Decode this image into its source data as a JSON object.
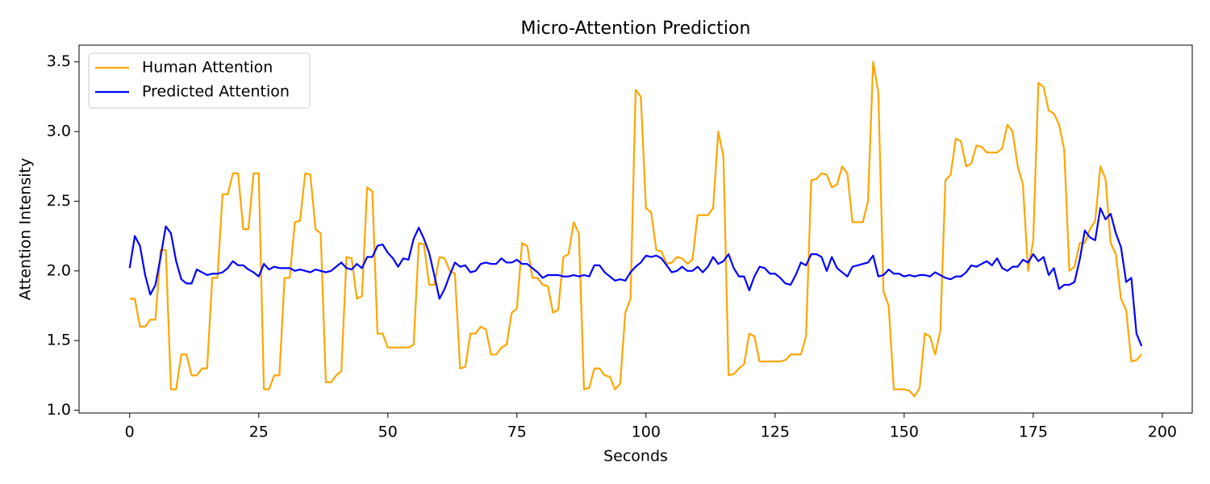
{
  "chart_data": {
    "type": "line",
    "title": "Micro-Attention Prediction",
    "x_label": "Seconds",
    "y_label": "Attention Intensity",
    "x": [
      0,
      1,
      2,
      3,
      4,
      5,
      6,
      7,
      8,
      9,
      10,
      11,
      12,
      13,
      14,
      15,
      16,
      17,
      18,
      19,
      20,
      21,
      22,
      23,
      24,
      25,
      26,
      27,
      28,
      29,
      30,
      31,
      32,
      33,
      34,
      35,
      36,
      37,
      38,
      39,
      40,
      41,
      42,
      43,
      44,
      45,
      46,
      47,
      48,
      49,
      50,
      51,
      52,
      53,
      54,
      55,
      56,
      57,
      58,
      59,
      60,
      61,
      62,
      63,
      64,
      65,
      66,
      67,
      68,
      69,
      70,
      71,
      72,
      73,
      74,
      75,
      76,
      77,
      78,
      79,
      80,
      81,
      82,
      83,
      84,
      85,
      86,
      87,
      88,
      89,
      90,
      91,
      92,
      93,
      94,
      95,
      96,
      97,
      98,
      99,
      100,
      101,
      102,
      103,
      104,
      105,
      106,
      107,
      108,
      109,
      110,
      111,
      112,
      113,
      114,
      115,
      116,
      117,
      118,
      119,
      120,
      121,
      122,
      123,
      124,
      125,
      126,
      127,
      128,
      129,
      130,
      131,
      132,
      133,
      134,
      135,
      136,
      137,
      138,
      139,
      140,
      141,
      142,
      143,
      144,
      145,
      146,
      147,
      148,
      149,
      150,
      151,
      152,
      153,
      154,
      155,
      156,
      157,
      158,
      159,
      160,
      161,
      162,
      163,
      164,
      165,
      166,
      167,
      168,
      169,
      170,
      171,
      172,
      173,
      174,
      175,
      176,
      177,
      178,
      179,
      180,
      181,
      182,
      183,
      184,
      185,
      186,
      187,
      188,
      189,
      190,
      191,
      192,
      193,
      194,
      195,
      196
    ],
    "series": [
      {
        "name": "Human Attention",
        "color": "orange",
        "values": [
          1.8,
          1.8,
          1.6,
          1.6,
          1.65,
          1.65,
          2.15,
          2.15,
          1.15,
          1.15,
          1.4,
          1.4,
          1.25,
          1.25,
          1.3,
          1.3,
          1.95,
          1.95,
          2.55,
          2.55,
          2.7,
          2.7,
          2.3,
          2.3,
          2.7,
          2.7,
          1.15,
          1.15,
          1.25,
          1.25,
          1.95,
          1.95,
          2.35,
          2.36,
          2.7,
          2.69,
          2.3,
          2.27,
          1.2,
          1.2,
          1.25,
          1.28,
          2.1,
          2.09,
          1.8,
          1.82,
          2.6,
          2.57,
          1.55,
          1.55,
          1.45,
          1.45,
          1.45,
          1.45,
          1.45,
          1.47,
          2.2,
          2.19,
          1.9,
          1.9,
          2.1,
          2.09,
          2.0,
          1.98,
          1.3,
          1.31,
          1.55,
          1.55,
          1.6,
          1.58,
          1.4,
          1.4,
          1.45,
          1.47,
          1.7,
          1.73,
          2.2,
          2.18,
          1.95,
          1.95,
          1.9,
          1.89,
          1.7,
          1.72,
          2.1,
          2.12,
          2.35,
          2.27,
          1.15,
          1.16,
          1.3,
          1.3,
          1.25,
          1.24,
          1.15,
          1.19,
          1.7,
          1.8,
          3.3,
          3.25,
          2.45,
          2.42,
          2.15,
          2.14,
          2.05,
          2.06,
          2.1,
          2.09,
          2.05,
          2.08,
          2.4,
          2.4,
          2.4,
          2.45,
          3.0,
          2.82,
          1.25,
          1.26,
          1.3,
          1.33,
          1.55,
          1.53,
          1.35,
          1.35,
          1.35,
          1.35,
          1.35,
          1.36,
          1.4,
          1.4,
          1.4,
          1.53,
          2.65,
          2.66,
          2.7,
          2.69,
          2.6,
          2.62,
          2.75,
          2.7,
          2.35,
          2.35,
          2.35,
          2.5,
          3.5,
          3.28,
          1.85,
          1.75,
          1.15,
          1.15,
          1.15,
          1.14,
          1.1,
          1.16,
          1.55,
          1.53,
          1.4,
          1.57,
          2.65,
          2.69,
          2.95,
          2.93,
          2.75,
          2.77,
          2.9,
          2.89,
          2.85,
          2.85,
          2.85,
          2.88,
          3.05,
          3.0,
          2.75,
          2.62,
          2.0,
          2.22,
          3.35,
          3.32,
          3.15,
          3.13,
          3.05,
          2.87,
          2.0,
          2.03,
          2.2,
          2.2,
          2.3,
          2.36,
          2.75,
          2.66,
          2.2,
          2.12,
          1.8,
          1.72,
          1.35,
          1.36,
          1.4
        ]
      },
      {
        "name": "Predicted Attention",
        "color": "blue",
        "values": [
          2.02,
          2.25,
          2.18,
          1.97,
          1.83,
          1.9,
          2.1,
          2.32,
          2.27,
          2.07,
          1.94,
          1.91,
          1.91,
          2.01,
          1.99,
          1.97,
          1.98,
          1.98,
          1.99,
          2.02,
          2.07,
          2.04,
          2.04,
          2.01,
          1.99,
          1.96,
          2.05,
          2.01,
          2.03,
          2.02,
          2.02,
          2.02,
          2.0,
          2.01,
          2.0,
          1.99,
          2.01,
          2.0,
          1.99,
          2.0,
          2.03,
          2.06,
          2.02,
          2.01,
          2.05,
          2.02,
          2.1,
          2.1,
          2.18,
          2.19,
          2.13,
          2.09,
          2.03,
          2.09,
          2.08,
          2.23,
          2.31,
          2.23,
          2.13,
          1.97,
          1.8,
          1.87,
          1.97,
          2.06,
          2.03,
          2.04,
          1.99,
          2.0,
          2.05,
          2.06,
          2.05,
          2.05,
          2.09,
          2.06,
          2.06,
          2.08,
          2.05,
          2.05,
          2.02,
          1.99,
          1.95,
          1.97,
          1.97,
          1.97,
          1.96,
          1.96,
          1.97,
          1.96,
          1.97,
          1.96,
          2.04,
          2.04,
          1.99,
          1.96,
          1.93,
          1.94,
          1.93,
          1.99,
          2.03,
          2.06,
          2.11,
          2.1,
          2.11,
          2.09,
          2.04,
          1.99,
          2.0,
          2.03,
          2.0,
          2.0,
          2.03,
          1.99,
          2.03,
          2.1,
          2.05,
          2.07,
          2.12,
          2.02,
          1.96,
          1.96,
          1.86,
          1.96,
          2.03,
          2.02,
          1.98,
          1.98,
          1.95,
          1.91,
          1.9,
          1.97,
          2.06,
          2.04,
          2.12,
          2.12,
          2.1,
          2.0,
          2.1,
          2.02,
          1.99,
          1.96,
          2.03,
          2.04,
          2.05,
          2.06,
          2.11,
          1.96,
          1.97,
          2.01,
          1.98,
          1.98,
          1.96,
          1.97,
          1.96,
          1.97,
          1.97,
          1.96,
          1.99,
          1.97,
          1.95,
          1.94,
          1.96,
          1.96,
          1.99,
          2.04,
          2.03,
          2.05,
          2.07,
          2.04,
          2.09,
          2.02,
          2.0,
          2.03,
          2.03,
          2.08,
          2.06,
          2.12,
          2.07,
          2.1,
          1.97,
          2.02,
          1.87,
          1.9,
          1.9,
          1.92,
          2.08,
          2.29,
          2.24,
          2.22,
          2.45,
          2.37,
          2.41,
          2.27,
          2.17,
          1.92,
          1.95,
          1.55,
          1.46
        ]
      }
    ],
    "xlim": [
      -9.8,
      205.8
    ],
    "ylim": [
      0.98,
      3.62
    ],
    "xticks": [
      0,
      25,
      50,
      75,
      100,
      125,
      150,
      175,
      200
    ],
    "yticks": [
      {
        "value": 1,
        "label": "1.0"
      },
      1.5,
      {
        "value": 2,
        "label": "2.0"
      },
      2.5,
      {
        "value": 3,
        "label": "3.0"
      },
      3.5
    ],
    "legend": "upper left"
  }
}
